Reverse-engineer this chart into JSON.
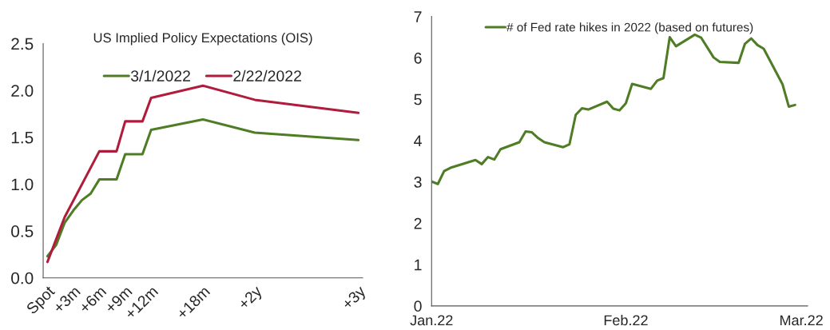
{
  "chart_data": [
    {
      "type": "line",
      "title": "US Implied Policy Expectations (OIS)",
      "categories": [
        "Spot",
        null,
        null,
        "+3m",
        null,
        null,
        "+6m",
        null,
        null,
        "+9m",
        null,
        null,
        "+12m",
        null,
        null,
        null,
        null,
        null,
        "+18m",
        null,
        null,
        null,
        null,
        null,
        "+2y",
        null,
        null,
        null,
        null,
        null,
        null,
        null,
        null,
        null,
        null,
        null,
        "+3y"
      ],
      "series": [
        {
          "name": "3/1/2022",
          "color": "#4e7d25",
          "values": [
            0.23,
            0.35,
            0.59,
            0.72,
            0.83,
            0.9,
            1.05,
            null,
            1.05,
            1.32,
            null,
            1.32,
            1.58,
            null,
            null,
            null,
            null,
            null,
            1.69,
            null,
            null,
            null,
            null,
            null,
            1.55,
            null,
            null,
            null,
            null,
            null,
            null,
            null,
            null,
            null,
            null,
            null,
            1.47
          ]
        },
        {
          "name": "2/22/2022",
          "color": "#b01c3c",
          "values": [
            0.17,
            0.41,
            0.65,
            null,
            null,
            null,
            1.35,
            null,
            1.35,
            1.67,
            null,
            1.67,
            1.92,
            null,
            null,
            null,
            null,
            null,
            2.05,
            null,
            null,
            null,
            null,
            null,
            1.9,
            null,
            null,
            null,
            null,
            null,
            null,
            null,
            null,
            null,
            null,
            null,
            1.76
          ]
        }
      ],
      "ylim": [
        0,
        2.5
      ],
      "yticks": [
        {
          "value": 0,
          "label": "0.0"
        },
        0.5,
        {
          "value": 1,
          "label": "1.0"
        },
        1.5,
        {
          "value": 2,
          "label": "2.0"
        },
        2.5
      ],
      "legend": "top",
      "grid": false
    },
    {
      "type": "line",
      "x": [
        "2022-01-01",
        "2022-01-02",
        "2022-01-03",
        "2022-01-04",
        "2022-01-08",
        "2022-01-09",
        "2022-01-10",
        "2022-01-11",
        "2022-01-12",
        "2022-01-15",
        "2022-01-16",
        "2022-01-17",
        "2022-01-18",
        "2022-01-19",
        "2022-01-22",
        "2022-01-23",
        "2022-01-24",
        "2022-01-25",
        "2022-01-26",
        "2022-01-29",
        "2022-01-30",
        "2022-01-31",
        "2022-02-01",
        "2022-02-02",
        "2022-02-05",
        "2022-02-06",
        "2022-02-07",
        "2022-02-08",
        "2022-02-09",
        "2022-02-12",
        "2022-02-13",
        "2022-02-15",
        "2022-02-16",
        "2022-02-19",
        "2022-02-20",
        "2022-02-21",
        "2022-02-22",
        "2022-02-23",
        "2022-02-26",
        "2022-02-27",
        "2022-02-28"
      ],
      "series": [
        {
          "name": "# of Fed rate hikes in 2022 (based on futures)",
          "color": "#4e7d25",
          "values": [
            3.01,
            2.95,
            3.26,
            3.34,
            3.53,
            3.43,
            3.6,
            3.54,
            3.79,
            3.96,
            4.22,
            4.2,
            4.06,
            3.96,
            3.84,
            3.91,
            4.62,
            4.78,
            4.75,
            4.94,
            4.77,
            4.73,
            4.9,
            5.37,
            5.25,
            5.45,
            5.51,
            6.5,
            6.28,
            6.56,
            6.49,
            6.01,
            5.9,
            5.88,
            6.34,
            6.47,
            6.31,
            6.22,
            5.36,
            4.82,
            4.86
          ]
        }
      ],
      "xlim": [
        "2022-01-01",
        "2022-03-02"
      ],
      "xticks": [
        {
          "value": "2022-01-01",
          "label": "Jan.22"
        },
        {
          "value": "2022-02-01",
          "label": "Feb.22"
        },
        {
          "value": "2022-03-01",
          "label": "Mar.22"
        }
      ],
      "ylim": [
        0,
        7
      ],
      "yticks": [
        0,
        1,
        2,
        3,
        4,
        5,
        6,
        7
      ],
      "legend": "top",
      "grid": false
    }
  ]
}
